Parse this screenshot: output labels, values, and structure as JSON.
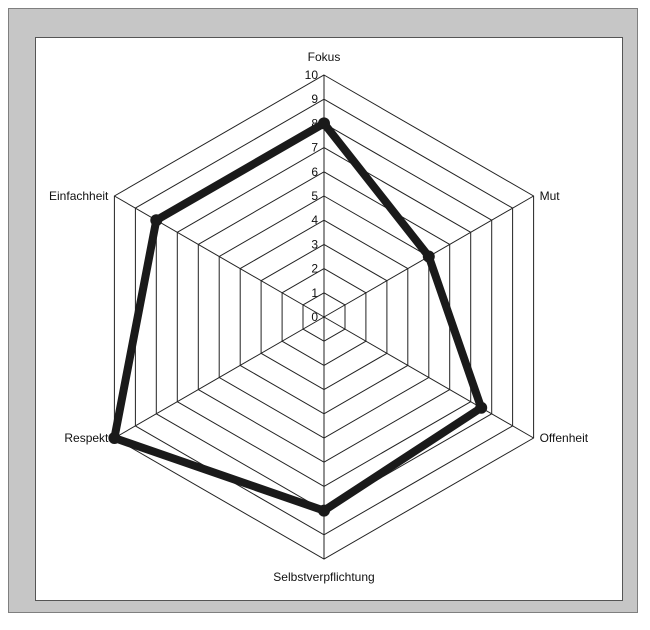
{
  "chart_data": {
    "type": "radar",
    "categories": [
      "Fokus",
      "Mut",
      "Offenheit",
      "Selbstverpflichtung",
      "Respekt",
      "Einfachheit"
    ],
    "ticks": [
      0,
      1,
      2,
      3,
      4,
      5,
      6,
      7,
      8,
      9,
      10
    ],
    "rlim": [
      0,
      10
    ],
    "grid": true,
    "series": [
      {
        "values": [
          8,
          5,
          7.5,
          8,
          10,
          8
        ],
        "color": "#1a1a1a",
        "style": "hand-drawn marker"
      }
    ]
  }
}
